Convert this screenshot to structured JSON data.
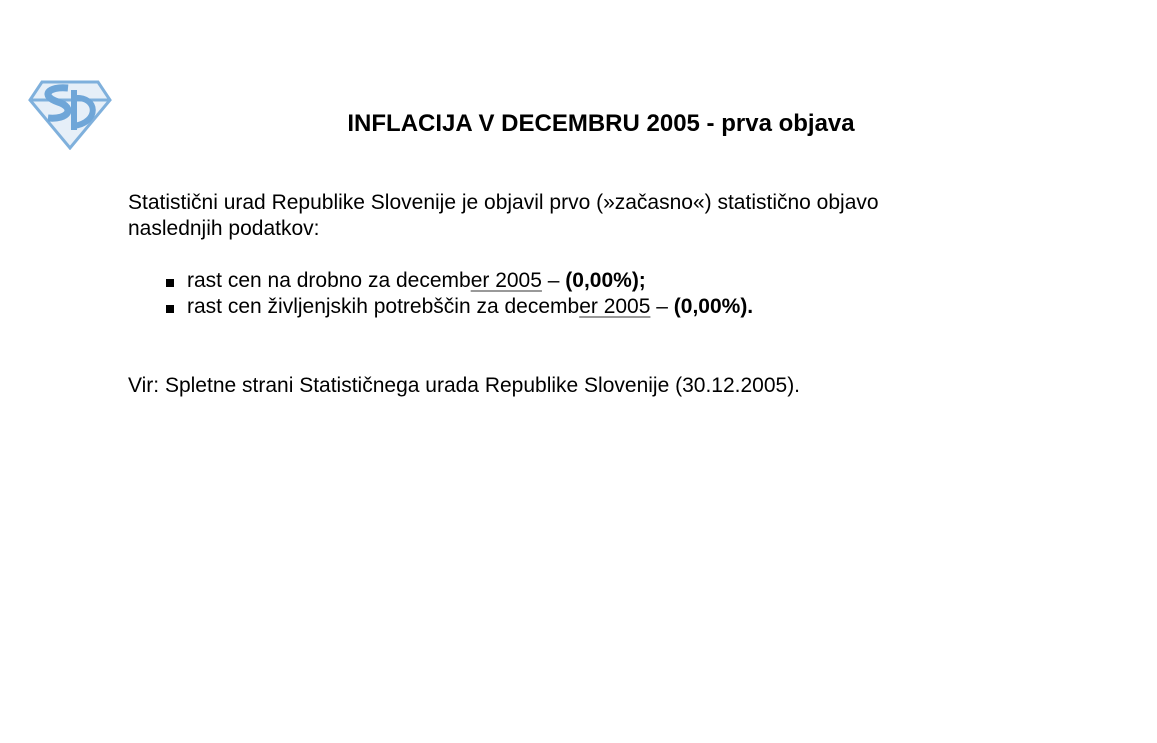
{
  "document": {
    "title": "INFLACIJA V DECEMBRU 2005 - prva objava",
    "intro_line1": "Statistični urad Republike Slovenije je objavil prvo (»začasno«) statistično objavo",
    "intro_line2": "naslednjih podatkov:",
    "bullets": [
      {
        "text": "rast cen na drobno za decemb",
        "underlined": "er 2005",
        "dash": " – ",
        "value": "(0,00%);"
      },
      {
        "text": "rast cen življenjskih potrebščin za decemb",
        "underlined": "er 2005",
        "dash": " – ",
        "value": "(0,00%)."
      }
    ],
    "source": "Vir: Spletne strani Statističnega urada Republike Slovenije (30.12.2005)."
  },
  "colors": {
    "logo": "#7fb0dc",
    "underline": "#999999"
  }
}
